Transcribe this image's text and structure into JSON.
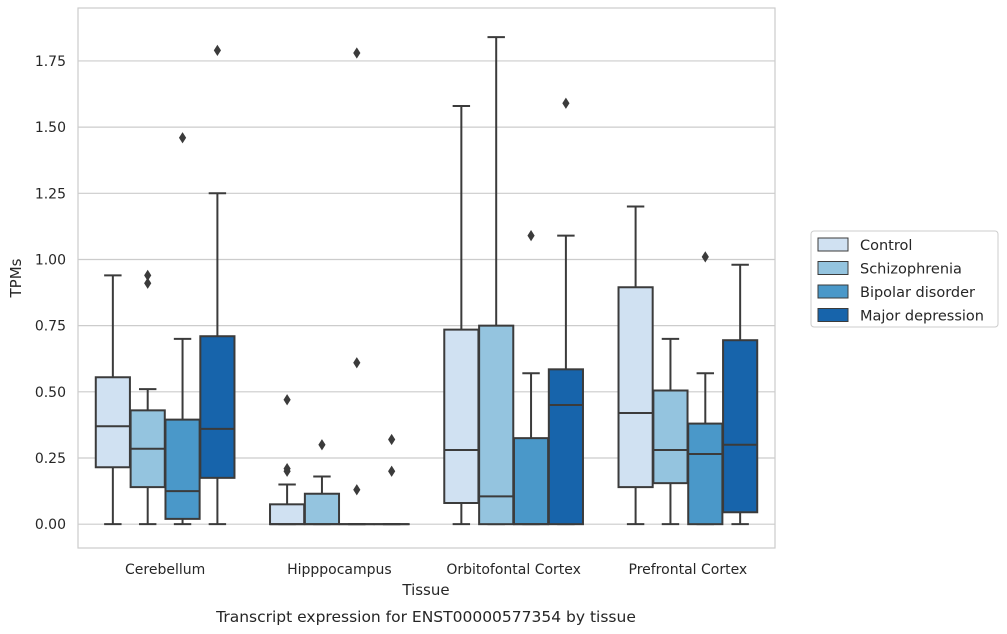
{
  "caption": "Transcript expression for ENST00000577354 by tissue",
  "chart_data": {
    "type": "box",
    "xlabel": "Tissue",
    "ylabel": "TPMs",
    "ylim": [
      -0.09,
      1.95
    ],
    "yticks": [
      0.0,
      0.25,
      0.5,
      0.75,
      1.0,
      1.25,
      1.5,
      1.75
    ],
    "ytick_labels": [
      "0.00",
      "0.25",
      "0.50",
      "0.75",
      "1.00",
      "1.25",
      "1.50",
      "1.75"
    ],
    "grid": "horizontal",
    "legend_position": "right",
    "categories": [
      "Cerebellum",
      "Hipppocampus",
      "Orbitofontal Cortex",
      "Prefrontal Cortex"
    ],
    "series": [
      {
        "name": "Control",
        "color": "#d0e1f2",
        "boxes": [
          {
            "q1": 0.215,
            "median": 0.37,
            "q3": 0.555,
            "whisker_low": 0.0,
            "whisker_high": 0.94,
            "outliers": []
          },
          {
            "q1": 0.0,
            "median": 0.0,
            "q3": 0.075,
            "whisker_low": 0.0,
            "whisker_high": 0.15,
            "outliers": [
              0.2,
              0.21,
              0.47
            ]
          },
          {
            "q1": 0.08,
            "median": 0.28,
            "q3": 0.735,
            "whisker_low": 0.0,
            "whisker_high": 1.58,
            "outliers": []
          },
          {
            "q1": 0.14,
            "median": 0.42,
            "q3": 0.895,
            "whisker_low": 0.0,
            "whisker_high": 1.2,
            "outliers": []
          }
        ]
      },
      {
        "name": "Schizophrenia",
        "color": "#94c4df",
        "boxes": [
          {
            "q1": 0.14,
            "median": 0.285,
            "q3": 0.43,
            "whisker_low": 0.0,
            "whisker_high": 0.51,
            "outliers": [
              0.91,
              0.94
            ]
          },
          {
            "q1": 0.0,
            "median": 0.0,
            "q3": 0.115,
            "whisker_low": 0.0,
            "whisker_high": 0.18,
            "outliers": [
              0.3
            ]
          },
          {
            "q1": 0.0,
            "median": 0.105,
            "q3": 0.75,
            "whisker_low": 0.0,
            "whisker_high": 1.84,
            "outliers": []
          },
          {
            "q1": 0.155,
            "median": 0.28,
            "q3": 0.505,
            "whisker_low": 0.0,
            "whisker_high": 0.7,
            "outliers": []
          }
        ]
      },
      {
        "name": "Bipolar disorder",
        "color": "#4a98c9",
        "boxes": [
          {
            "q1": 0.02,
            "median": 0.125,
            "q3": 0.395,
            "whisker_low": 0.0,
            "whisker_high": 0.7,
            "outliers": [
              1.46
            ]
          },
          {
            "q1": 0.0,
            "median": 0.0,
            "q3": 0.0,
            "whisker_low": 0.0,
            "whisker_high": 0.0,
            "outliers": [
              0.13,
              0.61,
              1.78
            ]
          },
          {
            "q1": 0.0,
            "median": 0.0,
            "q3": 0.325,
            "whisker_low": 0.0,
            "whisker_high": 0.57,
            "outliers": [
              1.09
            ]
          },
          {
            "q1": 0.0,
            "median": 0.265,
            "q3": 0.38,
            "whisker_low": 0.0,
            "whisker_high": 0.57,
            "outliers": [
              1.01
            ]
          }
        ]
      },
      {
        "name": "Major depression",
        "color": "#1764ab",
        "boxes": [
          {
            "q1": 0.175,
            "median": 0.36,
            "q3": 0.71,
            "whisker_low": 0.0,
            "whisker_high": 1.25,
            "outliers": [
              1.79
            ]
          },
          {
            "q1": 0.0,
            "median": 0.0,
            "q3": 0.0,
            "whisker_low": 0.0,
            "whisker_high": 0.0,
            "outliers": [
              0.2,
              0.32
            ]
          },
          {
            "q1": 0.0,
            "median": 0.45,
            "q3": 0.585,
            "whisker_low": 0.0,
            "whisker_high": 1.09,
            "outliers": [
              1.59
            ]
          },
          {
            "q1": 0.045,
            "median": 0.3,
            "q3": 0.695,
            "whisker_low": 0.0,
            "whisker_high": 0.98,
            "outliers": []
          }
        ]
      }
    ]
  }
}
